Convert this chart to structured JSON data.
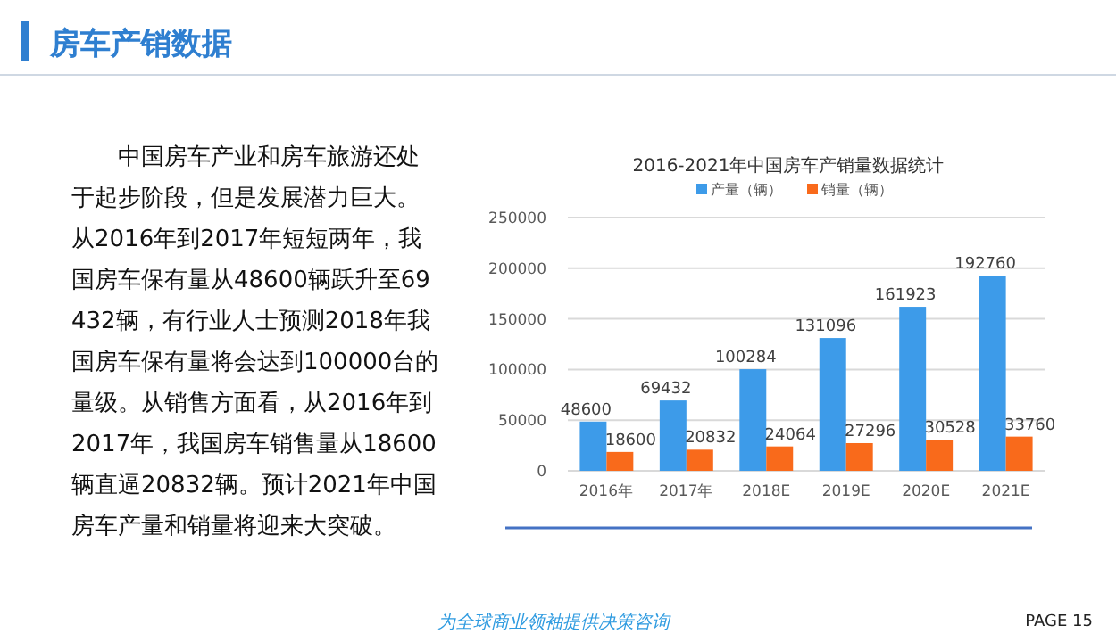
{
  "chart_data": {
    "type": "bar",
    "title": "房车产销数据",
    "subtitle": "2016-2021年中国房车产销量数据统计",
    "categories": [
      "2016年",
      "2017年",
      "2018E",
      "2019E",
      "2020E",
      "2021E"
    ],
    "series": [
      {
        "name": "产量（辆）",
        "color": "#3d9be9",
        "values": [
          48600,
          69432,
          100284,
          131096,
          161923,
          192760
        ]
      },
      {
        "name": "销量（辆）",
        "color": "#f96a1b",
        "values": [
          18600,
          20832,
          24064,
          27296,
          30528,
          33760
        ]
      }
    ],
    "ylim": [
      0,
      250000
    ],
    "yticks": [
      0,
      50000,
      100000,
      150000,
      200000,
      250000
    ],
    "grid": "y",
    "legend": "top",
    "data_labels": true,
    "annotations": [
      "中国房车产业和房车旅游还处于起步阶段，但是发展潜力巨大。从2016年到2017年短短两年，我国房车保有量从48600辆跃升至69432辆，有行业人士预测2018年我国房车保有量将会达到100000台的量级。从销售方面看，从2016年到2017年，我国房车销售量从18600辆直逼20832辆。预计2021年中国房车产量和销量将迎来大突破。",
      "为全球商业领袖提供决策咨询",
      "PAGE 15"
    ]
  }
}
